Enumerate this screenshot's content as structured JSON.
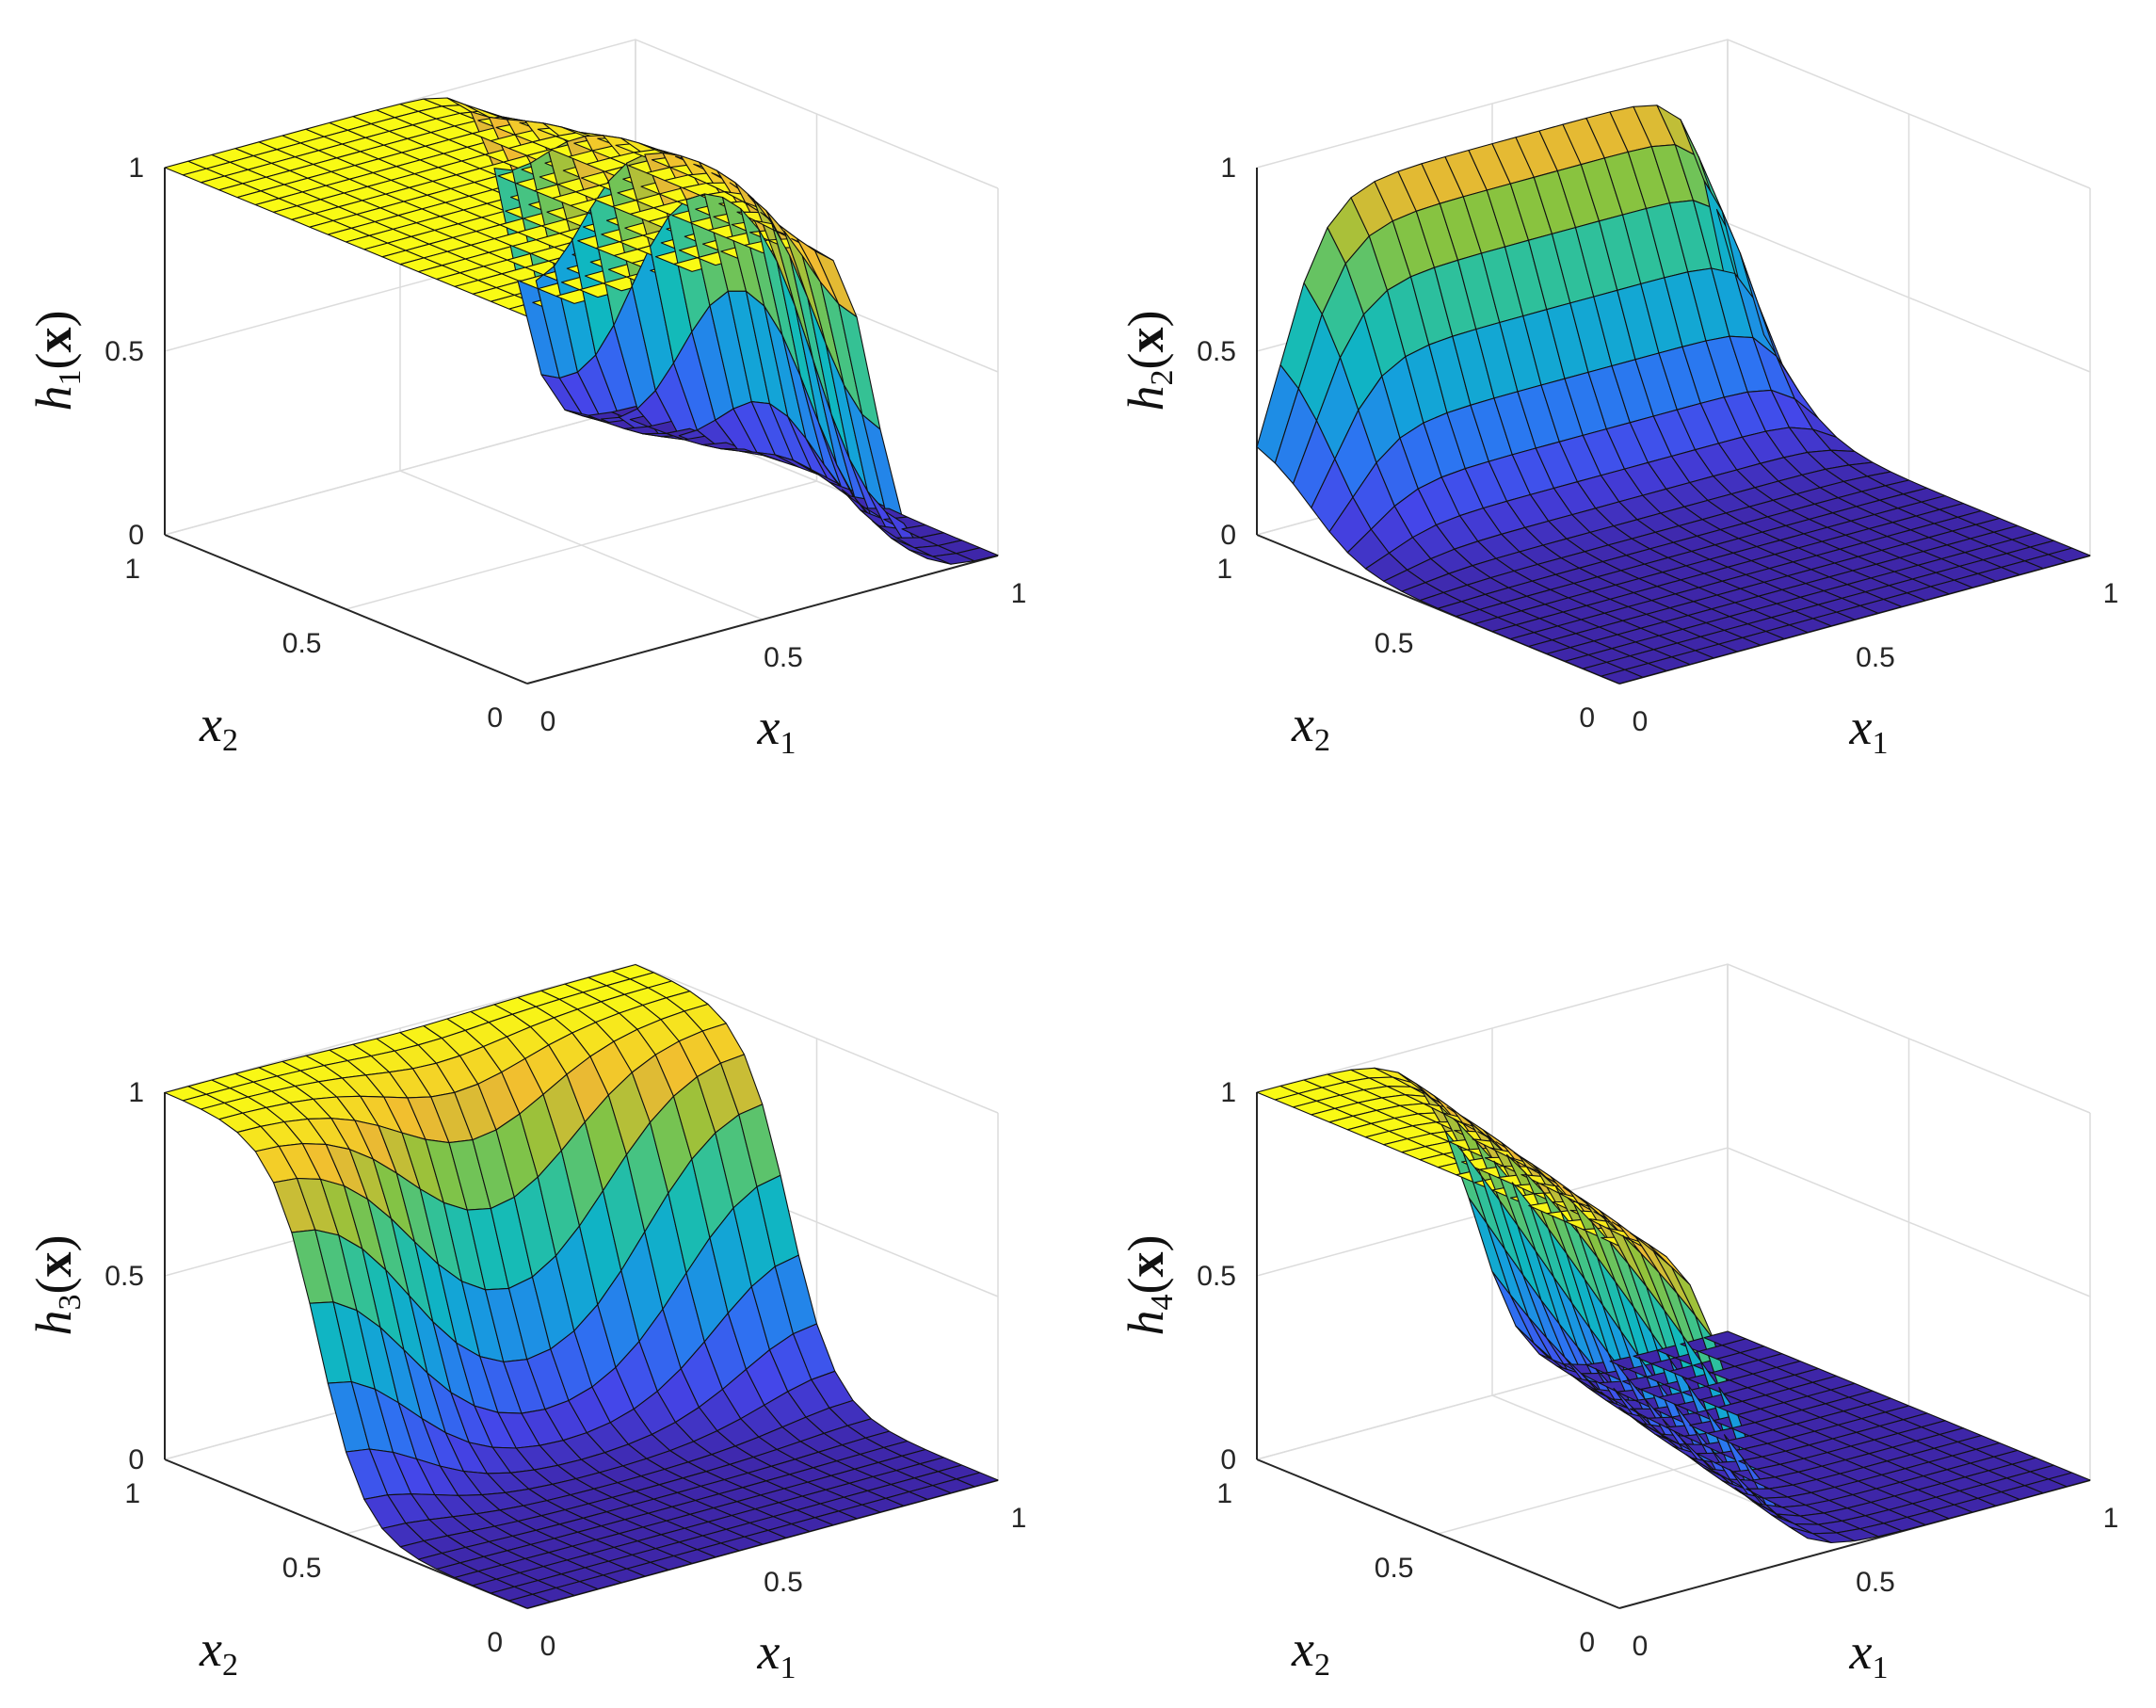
{
  "chart_data": [
    {
      "type": "surface",
      "zlabel": {
        "base": "h",
        "sub": "1",
        "arg": "x"
      },
      "xlabel": {
        "base": "x",
        "sub": "1"
      },
      "ylabel": {
        "base": "x",
        "sub": "2"
      },
      "xlim": [
        0,
        1
      ],
      "ylim": [
        0,
        1
      ],
      "zlim": [
        0,
        1
      ],
      "xticks": [
        "0",
        "0.5",
        "1"
      ],
      "yticks": [
        "0",
        "0.5",
        "1"
      ],
      "zticks": [
        "0",
        "0.5",
        "1"
      ],
      "grid": true,
      "colormap": "parula",
      "mesh_size": 20,
      "function": {
        "kind": "sigmoid_x1_low",
        "center_x1": 0.8,
        "steepness": 28,
        "x2_min_at": 0.5,
        "x2_weight": 0.6
      }
    },
    {
      "type": "surface",
      "zlabel": {
        "base": "h",
        "sub": "2",
        "arg": "x"
      },
      "xlabel": {
        "base": "x",
        "sub": "1"
      },
      "ylabel": {
        "base": "x",
        "sub": "2"
      },
      "xlim": [
        0,
        1
      ],
      "ylim": [
        0,
        1
      ],
      "zlim": [
        0,
        1
      ],
      "xticks": [
        "0",
        "0.5",
        "1"
      ],
      "yticks": [
        "0",
        "0.5",
        "1"
      ],
      "zticks": [
        "0",
        "0.5",
        "1"
      ],
      "grid": true,
      "colormap": "parula",
      "mesh_size": 20,
      "function": {
        "kind": "bump_x2_high",
        "center_x2": 0.85,
        "steepness": 14,
        "x1_peak_at": 0.7,
        "x1_width": 0.35
      }
    },
    {
      "type": "surface",
      "zlabel": {
        "base": "h",
        "sub": "3",
        "arg": "x"
      },
      "xlabel": {
        "base": "x",
        "sub": "1"
      },
      "ylabel": {
        "base": "x",
        "sub": "2"
      },
      "xlim": [
        0,
        1
      ],
      "ylim": [
        0,
        1
      ],
      "zlim": [
        0,
        1
      ],
      "xticks": [
        "0",
        "0.5",
        "1"
      ],
      "yticks": [
        "0",
        "0.5",
        "1"
      ],
      "zticks": [
        "0",
        "0.5",
        "1"
      ],
      "grid": true,
      "colormap": "parula",
      "mesh_size": 20,
      "function": {
        "kind": "sigmoid_x2_high",
        "center_x2": 0.65,
        "steepness": 16,
        "x1_min_at": 0.5,
        "x1_weight": 0.6
      }
    },
    {
      "type": "surface",
      "zlabel": {
        "base": "h",
        "sub": "4",
        "arg": "x"
      },
      "xlabel": {
        "base": "x",
        "sub": "1"
      },
      "ylabel": {
        "base": "x",
        "sub": "2"
      },
      "xlim": [
        0,
        1
      ],
      "ylim": [
        0,
        1
      ],
      "zlim": [
        0,
        1
      ],
      "xticks": [
        "0",
        "0.5",
        "1"
      ],
      "yticks": [
        "0",
        "0.5",
        "1"
      ],
      "zticks": [
        "0",
        "0.5",
        "1"
      ],
      "grid": true,
      "colormap": "parula",
      "mesh_size": 20,
      "function": {
        "kind": "sigmoid_x1_low_soft",
        "center_x1": 0.35,
        "steepness": 18,
        "x2_tilt": 0.45
      }
    }
  ]
}
